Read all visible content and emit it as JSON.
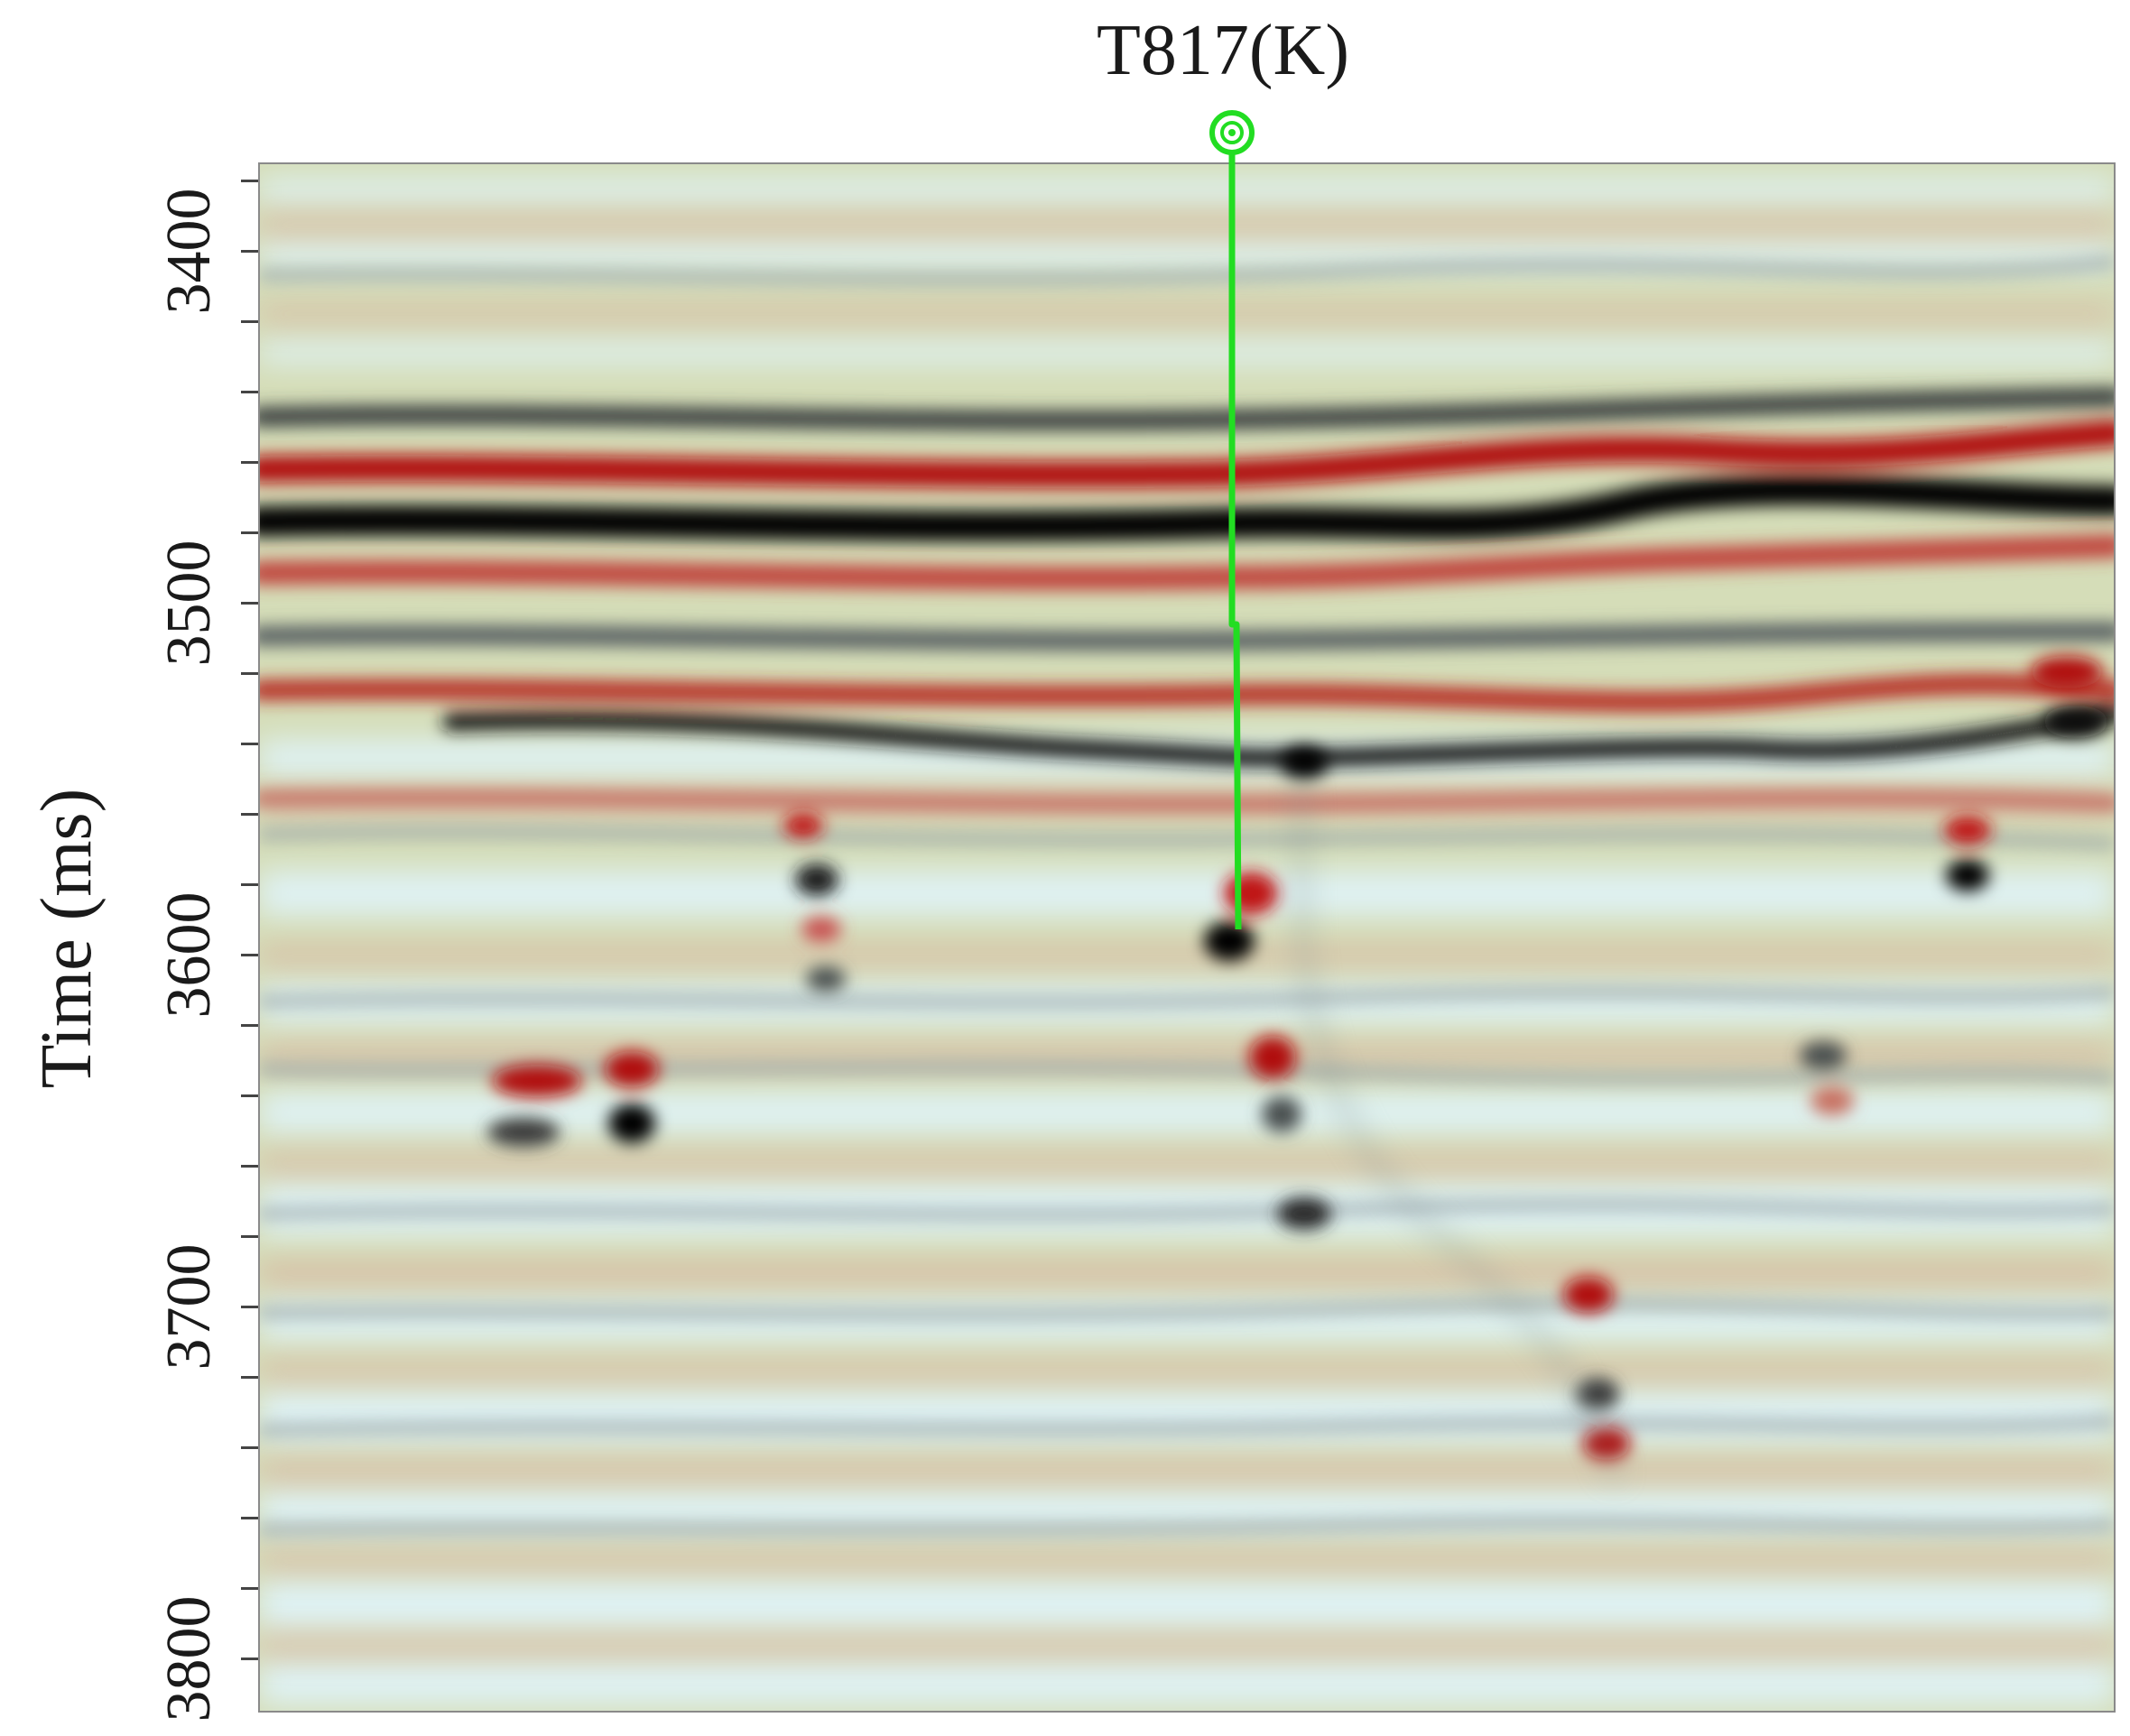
{
  "well": {
    "label": "T817(K)",
    "marker_color": "#22dd22"
  },
  "axis": {
    "label": "Time (ms)",
    "ticks": [
      "3400",
      "3500",
      "3600",
      "3700",
      "3800"
    ],
    "range_ms": [
      3375,
      3815
    ],
    "minor_tick_step_ms": 20
  },
  "section": {
    "colormap": [
      "#000000",
      "#d8eef0",
      "#d5ddb8",
      "#b40f0f"
    ],
    "background": "#d5ddb8"
  }
}
